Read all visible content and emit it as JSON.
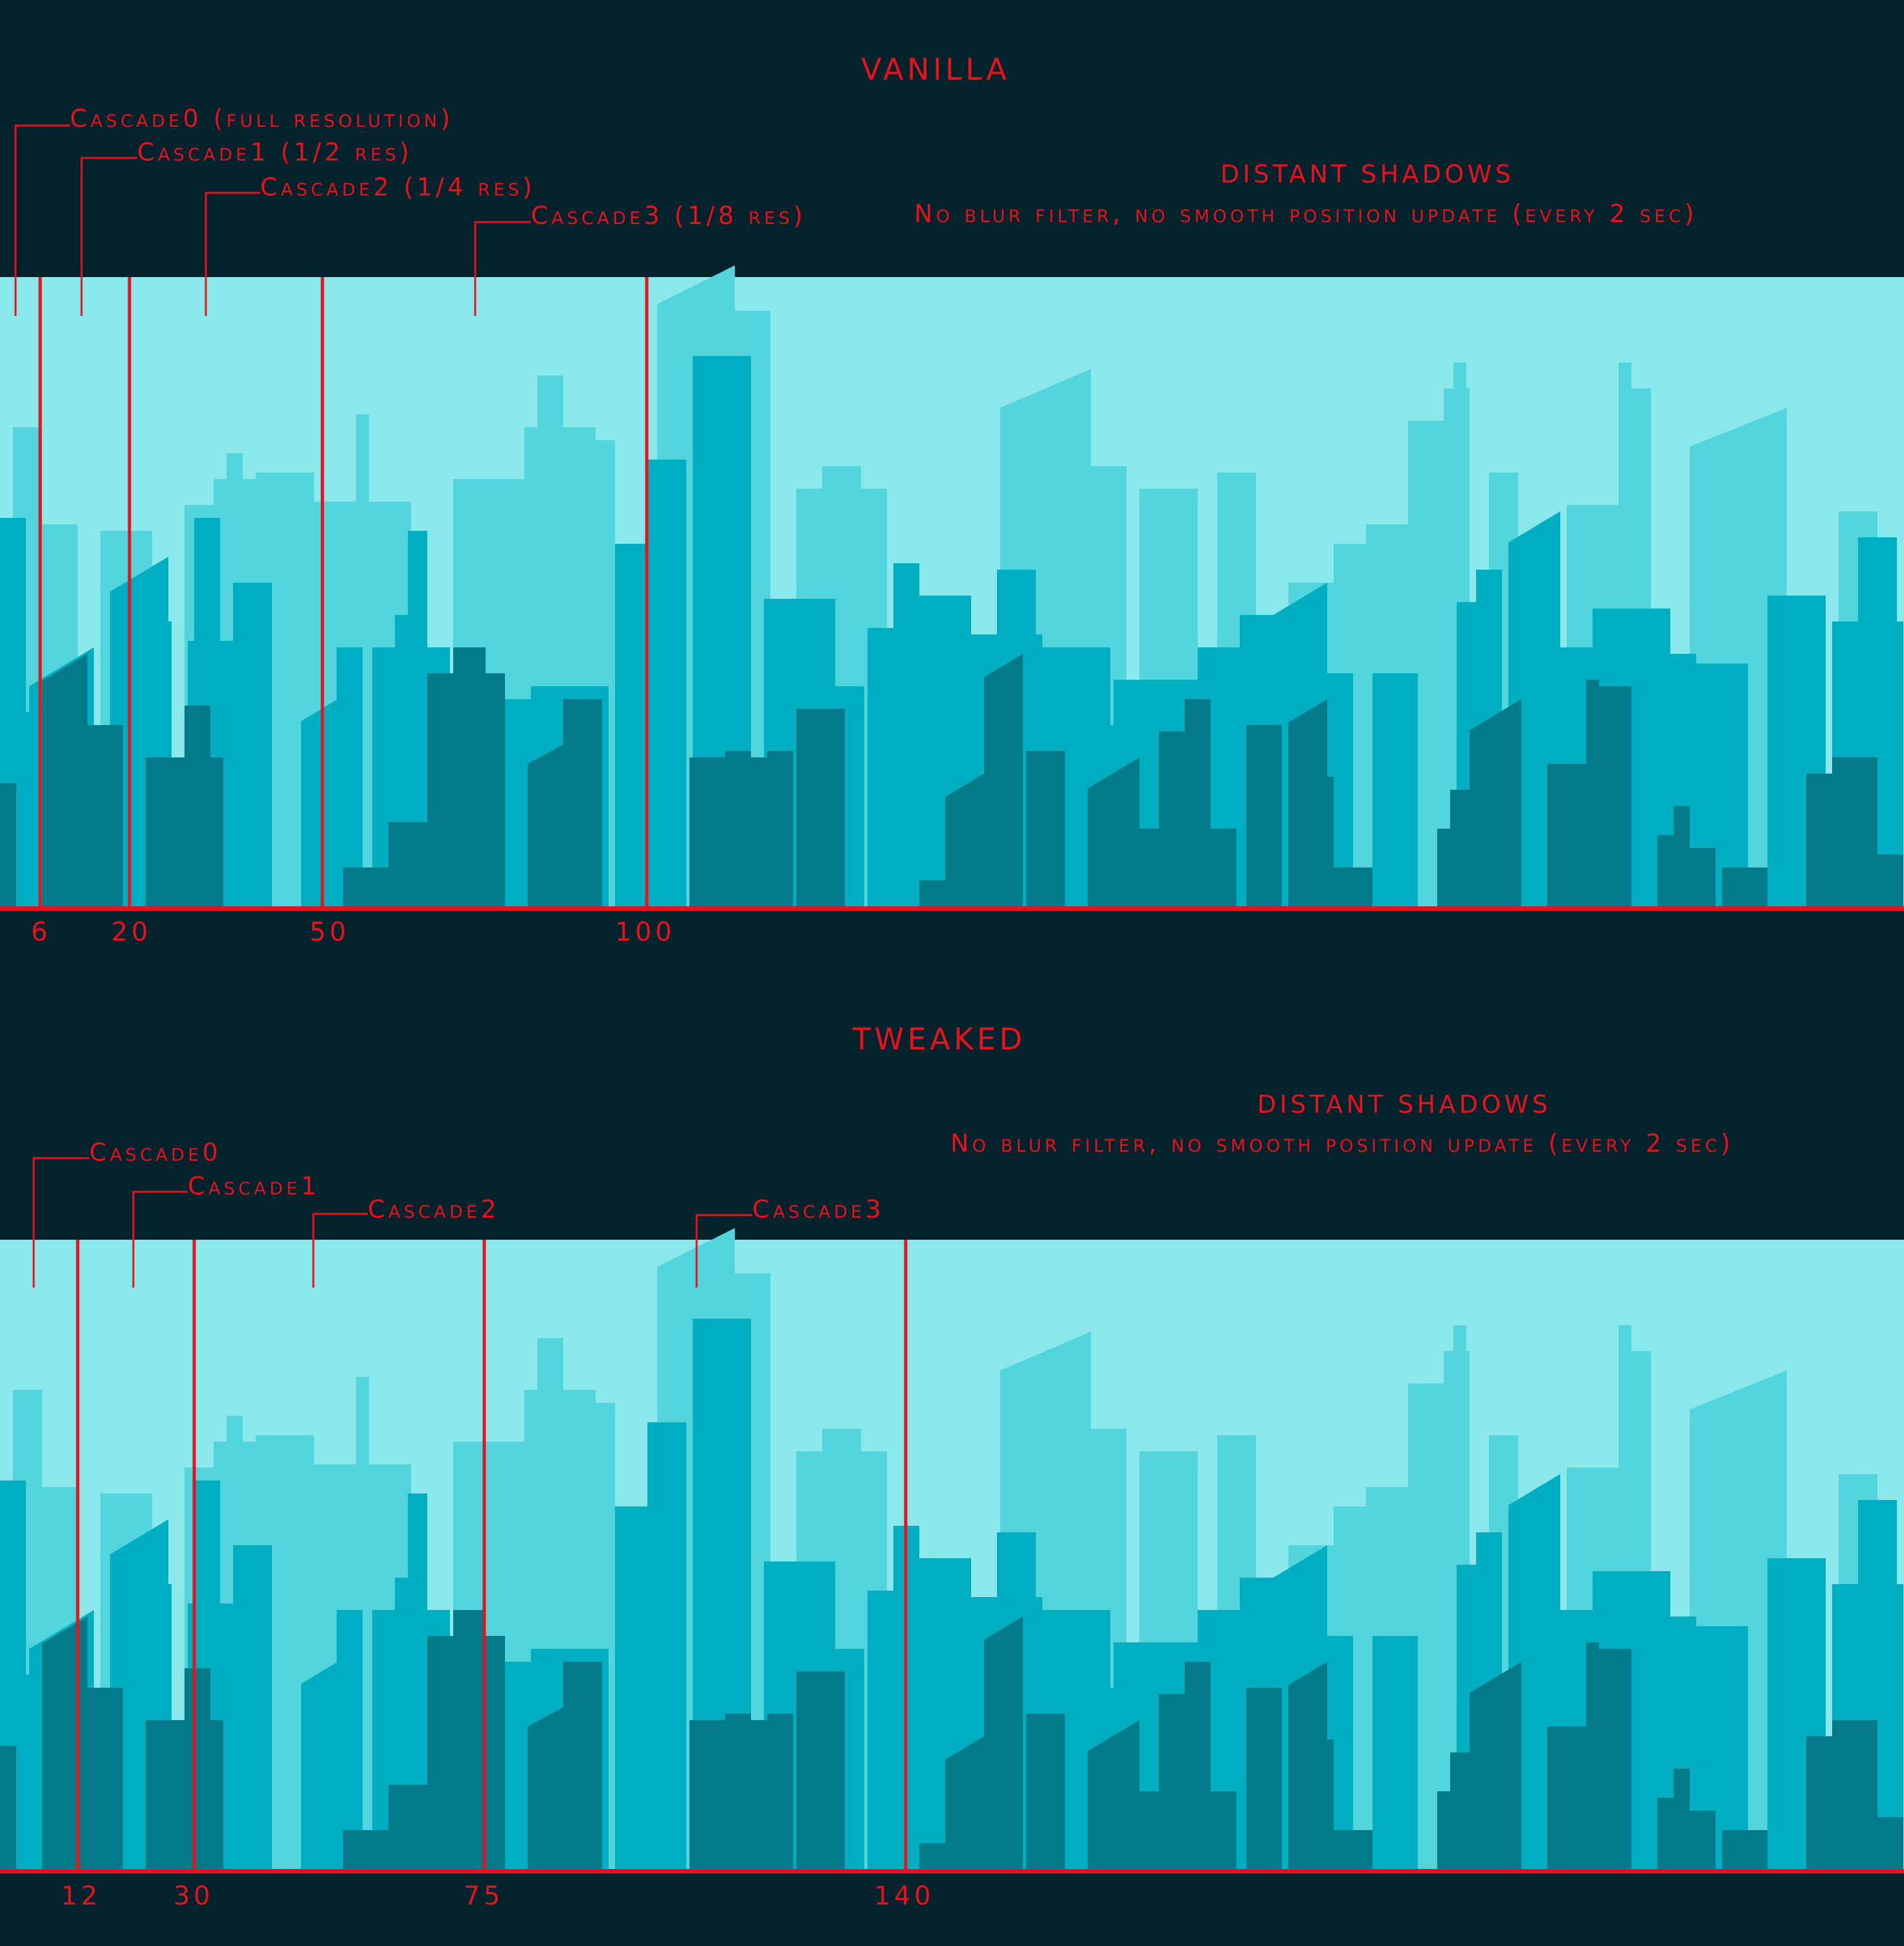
{
  "panels": [
    {
      "title": "VANILLA",
      "distant_heading": "DISTANT SHADOWS",
      "distant_note": "No blur filter, no smooth position update (every 2 sec)",
      "cascades": [
        "Cascade0 (full resolution)",
        "Cascade1 (1/2 res)",
        "Cascade2 (1/4 res)",
        "Cascade3 (1/8 res)"
      ],
      "ticks": [
        "6",
        "20",
        "50",
        "100"
      ]
    },
    {
      "title": "TWEAKED",
      "distant_heading": "DISTANT SHADOWS",
      "distant_note": "No blur filter, no smooth position update (every 2 sec)",
      "cascades": [
        "Cascade0",
        "Cascade1",
        "Cascade2",
        "Cascade3"
      ],
      "ticks": [
        "12",
        "30",
        "75",
        "140"
      ]
    }
  ],
  "colors": {
    "background": "#03222b",
    "sky": "#8ae8ea",
    "layer_far": "#52d4dc",
    "layer_mid": "#00aec2",
    "layer_near": "#027a8a",
    "annotation": "#e8121d"
  }
}
